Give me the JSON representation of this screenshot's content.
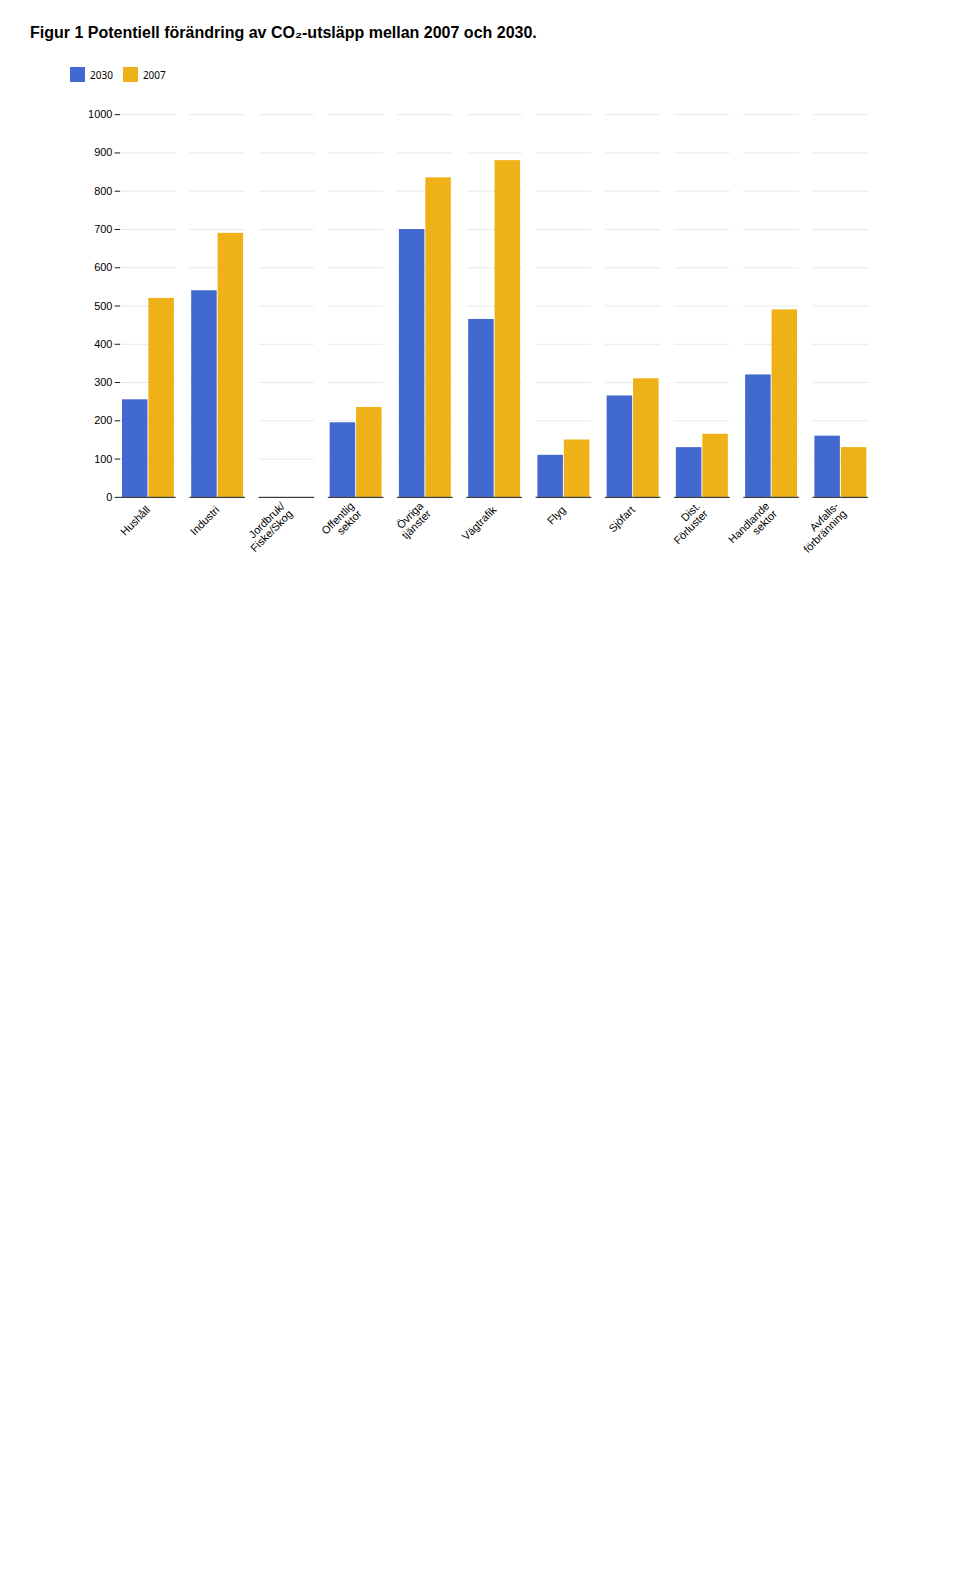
{
  "chart_data": {
    "type": "bar",
    "title": "Figur 1 Potentiell förändring av CO₂-utsläpp mellan 2007 och 2030.",
    "categories": [
      "Hushåll",
      "Industri",
      "Jordbruk/\nFiske/Skog",
      "Offentlig\nsektor",
      "Övriga\ntjänster",
      "Vägtrafik",
      "Flyg",
      "Sjöfart",
      "Dist.\nFörluster",
      "Handlande\nsektor",
      "Avfalls-\nförbränning"
    ],
    "series": [
      {
        "name": "2030",
        "values": [
          255,
          540,
          0,
          195,
          700,
          465,
          110,
          265,
          130,
          320,
          160
        ]
      },
      {
        "name": "2007",
        "values": [
          520,
          690,
          0,
          235,
          835,
          880,
          150,
          310,
          165,
          490,
          130
        ]
      }
    ],
    "ylim": [
      0,
      1000
    ],
    "yticks": [
      0,
      100,
      200,
      300,
      400,
      500,
      600,
      700,
      800,
      900,
      1000
    ],
    "grid": true
  }
}
